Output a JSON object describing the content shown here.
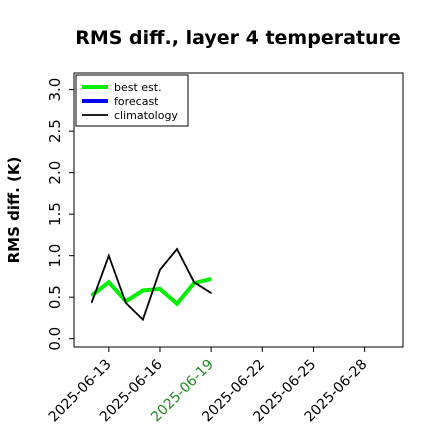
{
  "chart_data": {
    "type": "line",
    "title": "RMS diff., layer 4 temperature",
    "xlabel": "",
    "ylabel": "RMS diff. (K)",
    "ylim": [
      -0.1,
      3.2
    ],
    "xlim": [
      "2025-06-10T23:00",
      "2025-06-30T06:00"
    ],
    "yticks": [
      0.0,
      0.5,
      1.0,
      1.5,
      2.0,
      2.5,
      3.0
    ],
    "ytick_labels": [
      "0.0",
      "0.5",
      "1.0",
      "1.5",
      "2.0",
      "2.5",
      "3.0"
    ],
    "xticks": [
      "2025-06-13",
      "2025-06-16",
      "2025-06-19",
      "2025-06-22",
      "2025-06-25",
      "2025-06-28"
    ],
    "xtick_labels": [
      "2025-06-13",
      "2025-06-16",
      "2025-06-19",
      "2025-06-22",
      "2025-06-25",
      "2025-06-28"
    ],
    "xtick_colors": [
      "#000000",
      "#000000",
      "#228B22",
      "#000000",
      "#000000",
      "#000000"
    ],
    "grid": false,
    "legend_position": "top-left",
    "series": [
      {
        "name": "best est.",
        "color": "#00ee00",
        "x": [
          "2025-06-12",
          "2025-06-13",
          "2025-06-14",
          "2025-06-15",
          "2025-06-16",
          "2025-06-17",
          "2025-06-18",
          "2025-06-19"
        ],
        "values": [
          0.52,
          0.68,
          0.45,
          0.58,
          0.6,
          0.42,
          0.67,
          0.72
        ]
      },
      {
        "name": "forecast",
        "color": "#0000ff",
        "x": [],
        "values": []
      },
      {
        "name": "climatology",
        "color": "#000000",
        "x": [
          "2025-06-12",
          "2025-06-13",
          "2025-06-14",
          "2025-06-15",
          "2025-06-16",
          "2025-06-17",
          "2025-06-18",
          "2025-06-19"
        ],
        "values": [
          0.44,
          1.0,
          0.43,
          0.23,
          0.83,
          1.08,
          0.68,
          0.55
        ]
      }
    ]
  }
}
